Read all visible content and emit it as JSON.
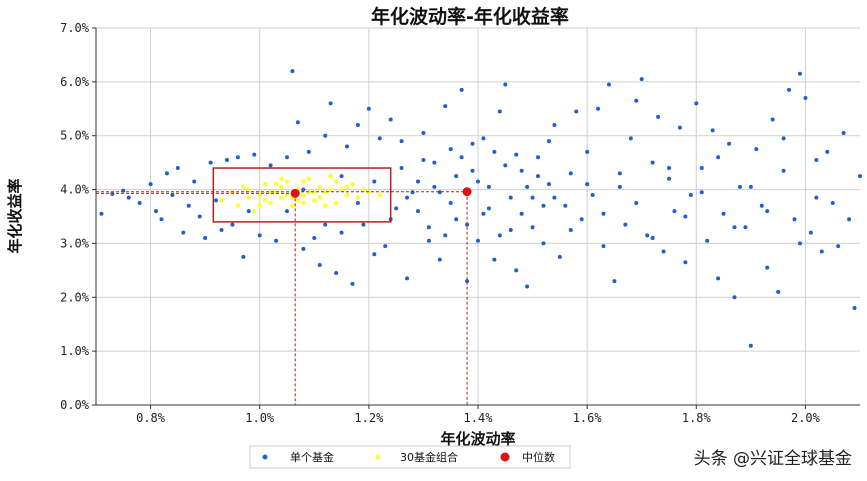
{
  "chart_data": {
    "type": "scatter",
    "title": "年化波动率-年化收益率",
    "xlabel": "年化波动率",
    "ylabel": "年化收益率",
    "xlim": [
      0.7,
      2.1
    ],
    "ylim": [
      0.0,
      7.0
    ],
    "x_ticks": [
      "0.8%",
      "1.0%",
      "1.2%",
      "1.4%",
      "1.6%",
      "1.8%",
      "2.0%"
    ],
    "x_tick_values": [
      0.8,
      1.0,
      1.2,
      1.4,
      1.6,
      1.8,
      2.0
    ],
    "y_ticks": [
      "0.0%",
      "1.0%",
      "2.0%",
      "3.0%",
      "4.0%",
      "5.0%",
      "6.0%",
      "7.0%"
    ],
    "y_tick_values": [
      0,
      1,
      2,
      3,
      4,
      5,
      6,
      7
    ],
    "grid": true,
    "legend_position": "bottom-center",
    "colors": {
      "single": "#1f5fd0",
      "combo": "#ffff33",
      "median": "#dd1111",
      "box": "#b22222"
    },
    "series": [
      {
        "name": "单个基金",
        "points": [
          [
            0.71,
            3.55
          ],
          [
            0.73,
            3.92
          ],
          [
            0.75,
            3.98
          ],
          [
            0.76,
            3.85
          ],
          [
            0.78,
            3.75
          ],
          [
            0.8,
            4.1
          ],
          [
            0.81,
            3.6
          ],
          [
            0.82,
            3.45
          ],
          [
            0.83,
            4.3
          ],
          [
            0.84,
            3.9
          ],
          [
            0.85,
            4.4
          ],
          [
            0.86,
            3.2
          ],
          [
            0.87,
            3.7
          ],
          [
            0.88,
            4.15
          ],
          [
            0.89,
            3.5
          ],
          [
            0.9,
            3.1
          ],
          [
            0.91,
            4.5
          ],
          [
            0.92,
            3.8
          ],
          [
            0.93,
            3.25
          ],
          [
            0.94,
            4.55
          ],
          [
            0.95,
            3.35
          ],
          [
            0.96,
            4.6
          ],
          [
            0.97,
            2.75
          ],
          [
            0.98,
            3.6
          ],
          [
            0.99,
            4.65
          ],
          [
            1.0,
            3.15
          ],
          [
            1.02,
            4.45
          ],
          [
            1.03,
            3.05
          ],
          [
            1.05,
            4.6
          ],
          [
            1.06,
            6.2
          ],
          [
            1.07,
            5.25
          ],
          [
            1.08,
            2.9
          ],
          [
            1.09,
            4.7
          ],
          [
            1.1,
            3.1
          ],
          [
            1.11,
            2.6
          ],
          [
            1.12,
            5.0
          ],
          [
            1.13,
            5.6
          ],
          [
            1.14,
            2.45
          ],
          [
            1.15,
            3.2
          ],
          [
            1.16,
            4.8
          ],
          [
            1.17,
            2.25
          ],
          [
            1.18,
            5.2
          ],
          [
            1.19,
            3.35
          ],
          [
            1.2,
            5.5
          ],
          [
            1.21,
            2.8
          ],
          [
            1.22,
            4.95
          ],
          [
            1.23,
            2.95
          ],
          [
            1.24,
            5.3
          ],
          [
            1.25,
            3.65
          ],
          [
            1.26,
            4.4
          ],
          [
            1.27,
            2.35
          ],
          [
            1.28,
            3.95
          ],
          [
            1.29,
            4.15
          ],
          [
            1.3,
            5.05
          ],
          [
            1.31,
            3.3
          ],
          [
            1.32,
            4.5
          ],
          [
            1.33,
            2.7
          ],
          [
            1.34,
            5.55
          ],
          [
            1.35,
            3.75
          ],
          [
            1.36,
            4.25
          ],
          [
            1.37,
            5.85
          ],
          [
            1.38,
            2.3
          ],
          [
            1.39,
            4.85
          ],
          [
            1.4,
            3.05
          ],
          [
            1.41,
            3.55
          ],
          [
            1.42,
            4.05
          ],
          [
            1.43,
            2.7
          ],
          [
            1.44,
            5.45
          ],
          [
            1.45,
            5.95
          ],
          [
            1.46,
            3.25
          ],
          [
            1.47,
            2.5
          ],
          [
            1.48,
            4.35
          ],
          [
            1.49,
            2.2
          ],
          [
            1.5,
            3.85
          ],
          [
            1.51,
            4.6
          ],
          [
            1.52,
            3.0
          ],
          [
            1.53,
            4.1
          ],
          [
            1.54,
            5.2
          ],
          [
            1.55,
            2.75
          ],
          [
            1.56,
            3.7
          ],
          [
            1.57,
            4.3
          ],
          [
            1.58,
            5.45
          ],
          [
            1.59,
            3.45
          ],
          [
            1.6,
            4.7
          ],
          [
            1.61,
            3.9
          ],
          [
            1.62,
            5.5
          ],
          [
            1.63,
            2.95
          ],
          [
            1.64,
            5.95
          ],
          [
            1.65,
            2.3
          ],
          [
            1.66,
            4.05
          ],
          [
            1.67,
            3.35
          ],
          [
            1.68,
            4.95
          ],
          [
            1.69,
            5.65
          ],
          [
            1.7,
            6.05
          ],
          [
            1.71,
            3.15
          ],
          [
            1.72,
            4.5
          ],
          [
            1.73,
            5.35
          ],
          [
            1.74,
            2.85
          ],
          [
            1.75,
            4.2
          ],
          [
            1.76,
            3.6
          ],
          [
            1.77,
            5.15
          ],
          [
            1.78,
            2.65
          ],
          [
            1.79,
            3.9
          ],
          [
            1.8,
            5.6
          ],
          [
            1.81,
            4.4
          ],
          [
            1.82,
            3.05
          ],
          [
            1.83,
            5.1
          ],
          [
            1.84,
            2.35
          ],
          [
            1.85,
            3.55
          ],
          [
            1.86,
            4.85
          ],
          [
            1.87,
            2.0
          ],
          [
            1.88,
            4.05
          ],
          [
            1.89,
            3.3
          ],
          [
            1.9,
            1.1
          ],
          [
            1.91,
            4.75
          ],
          [
            1.92,
            3.7
          ],
          [
            1.93,
            2.55
          ],
          [
            1.94,
            5.3
          ],
          [
            1.95,
            2.1
          ],
          [
            1.96,
            4.95
          ],
          [
            1.97,
            5.85
          ],
          [
            1.98,
            3.45
          ],
          [
            1.99,
            6.15
          ],
          [
            2.0,
            5.7
          ],
          [
            2.01,
            3.2
          ],
          [
            2.02,
            4.55
          ],
          [
            2.03,
            2.85
          ],
          [
            2.04,
            4.7
          ],
          [
            2.05,
            3.75
          ],
          [
            2.06,
            2.95
          ],
          [
            2.07,
            5.05
          ],
          [
            2.08,
            3.45
          ],
          [
            2.09,
            1.8
          ],
          [
            2.1,
            4.25
          ],
          [
            1.05,
            3.6
          ],
          [
            1.08,
            4.0
          ],
          [
            1.12,
            3.35
          ],
          [
            1.15,
            4.25
          ],
          [
            1.18,
            3.75
          ],
          [
            1.21,
            4.15
          ],
          [
            1.24,
            3.45
          ],
          [
            1.27,
            3.85
          ],
          [
            1.3,
            4.55
          ],
          [
            1.33,
            3.95
          ],
          [
            1.36,
            3.45
          ],
          [
            1.39,
            4.35
          ],
          [
            1.42,
            3.65
          ],
          [
            1.45,
            4.45
          ],
          [
            1.48,
            3.55
          ],
          [
            1.51,
            4.25
          ],
          [
            1.54,
            3.85
          ],
          [
            1.57,
            3.25
          ],
          [
            1.6,
            4.1
          ],
          [
            1.63,
            3.55
          ],
          [
            1.66,
            4.3
          ],
          [
            1.69,
            3.75
          ],
          [
            1.72,
            3.1
          ],
          [
            1.75,
            4.4
          ],
          [
            1.78,
            3.5
          ],
          [
            1.81,
            3.95
          ],
          [
            1.84,
            4.6
          ],
          [
            1.87,
            3.3
          ],
          [
            1.9,
            4.05
          ],
          [
            1.93,
            3.6
          ],
          [
            1.96,
            4.35
          ],
          [
            1.99,
            3.0
          ],
          [
            2.02,
            3.85
          ],
          [
            1.26,
            4.9
          ],
          [
            1.31,
            3.05
          ],
          [
            1.35,
            4.75
          ],
          [
            1.38,
            3.35
          ],
          [
            1.41,
            4.95
          ],
          [
            1.44,
            3.15
          ],
          [
            1.47,
            4.65
          ],
          [
            1.5,
            3.3
          ],
          [
            1.53,
            4.9
          ],
          [
            1.29,
            3.6
          ],
          [
            1.32,
            4.05
          ],
          [
            1.34,
            3.15
          ],
          [
            1.37,
            4.6
          ],
          [
            1.4,
            4.15
          ],
          [
            1.43,
            4.7
          ],
          [
            1.46,
            3.85
          ],
          [
            1.49,
            4.05
          ],
          [
            1.52,
            3.7
          ]
        ]
      },
      {
        "name": "30基金组合",
        "points": [
          [
            0.93,
            3.8
          ],
          [
            0.95,
            3.95
          ],
          [
            0.96,
            3.7
          ],
          [
            0.97,
            4.05
          ],
          [
            0.98,
            3.85
          ],
          [
            0.99,
            3.6
          ],
          [
            1.0,
            3.9
          ],
          [
            1.01,
            4.1
          ],
          [
            1.02,
            3.75
          ],
          [
            1.03,
            3.95
          ],
          [
            1.04,
            3.85
          ],
          [
            1.05,
            4.15
          ],
          [
            1.06,
            3.7
          ],
          [
            1.07,
            4.0
          ],
          [
            1.08,
            3.9
          ],
          [
            1.09,
            4.2
          ],
          [
            1.1,
            3.8
          ],
          [
            1.11,
            4.05
          ],
          [
            1.12,
            3.95
          ],
          [
            1.13,
            4.25
          ],
          [
            1.14,
            3.75
          ],
          [
            1.15,
            4.0
          ],
          [
            1.16,
            3.9
          ],
          [
            1.17,
            4.1
          ],
          [
            1.18,
            3.85
          ],
          [
            1.19,
            4.0
          ],
          [
            1.2,
            3.95
          ],
          [
            1.02,
            3.95
          ],
          [
            1.04,
            4.05
          ],
          [
            1.06,
            3.85
          ],
          [
            1.08,
            4.15
          ],
          [
            1.1,
            3.95
          ],
          [
            1.12,
            3.7
          ],
          [
            1.14,
            4.15
          ],
          [
            1.01,
            3.8
          ],
          [
            1.03,
            4.1
          ],
          [
            1.05,
            3.9
          ],
          [
            1.07,
            3.8
          ],
          [
            1.09,
            3.95
          ],
          [
            1.11,
            3.85
          ],
          [
            1.13,
            4.0
          ],
          [
            0.98,
            4.0
          ],
          [
            1.0,
            3.7
          ],
          [
            1.04,
            4.2
          ],
          [
            1.08,
            3.75
          ],
          [
            1.16,
            4.05
          ],
          [
            1.22,
            3.9
          ]
        ]
      },
      {
        "name": "中位数",
        "points": [
          [
            1.065,
            3.93
          ],
          [
            1.38,
            3.96
          ]
        ]
      }
    ],
    "annotations": {
      "box": {
        "x": [
          0.915,
          1.24
        ],
        "y": [
          3.4,
          4.4
        ]
      },
      "median_lines": [
        [
          1.065,
          3.93
        ],
        [
          1.38,
          3.96
        ]
      ]
    }
  },
  "watermark": "头条 @兴证全球基金"
}
